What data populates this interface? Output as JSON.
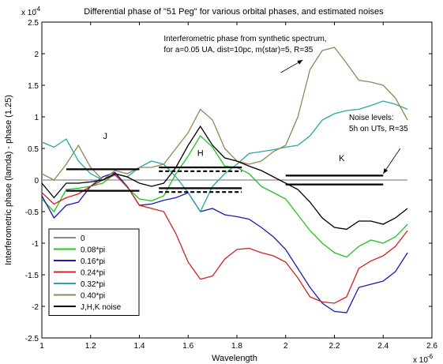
{
  "chart_data": {
    "type": "line",
    "title": "Differential phase of \"51 Peg\" for various orbital phases, and estimated noises",
    "xlabel": "Wavelength",
    "ylabel": "Interferometric phase (lamda) - phase (1.25)",
    "x_multiplier": "x 10",
    "x_exponent": "-6",
    "y_multiplier": "x 10",
    "y_exponent": "-4",
    "xlim": [
      1.0,
      2.6
    ],
    "ylim": [
      -2.5,
      2.5
    ],
    "xticks": [
      "1",
      "1.2",
      "1.4",
      "1.6",
      "1.8",
      "2",
      "2.2",
      "2.4",
      "2.6"
    ],
    "yticks": [
      "-2.5",
      "-2",
      "-1.5",
      "-1",
      "-0.5",
      "0",
      "0.5",
      "1",
      "1.5",
      "2",
      "2.5"
    ],
    "xtick_values": [
      1.0,
      1.2,
      1.4,
      1.6,
      1.8,
      2.0,
      2.2,
      2.4,
      2.6
    ],
    "ytick_values": [
      -2.5,
      -2,
      -1.5,
      -1,
      -0.5,
      0,
      0.5,
      1,
      1.5,
      2,
      2.5
    ],
    "grid": false,
    "legend_position": "bottom-left",
    "x": [
      1.0,
      1.05,
      1.1,
      1.15,
      1.2,
      1.25,
      1.3,
      1.35,
      1.4,
      1.45,
      1.5,
      1.55,
      1.6,
      1.65,
      1.7,
      1.75,
      1.8,
      1.85,
      1.9,
      1.95,
      2.0,
      2.05,
      2.1,
      2.15,
      2.2,
      2.25,
      2.3,
      2.35,
      2.4,
      2.45,
      2.5
    ],
    "series": [
      {
        "name": "0",
        "color": "#8a8a8a",
        "values": [
          0,
          0,
          0,
          0,
          0,
          0,
          0,
          0,
          0,
          0,
          0,
          0,
          0,
          0,
          0,
          0,
          0,
          0,
          0,
          0,
          0,
          0,
          0,
          0,
          0,
          0,
          0,
          0,
          0,
          0,
          0
        ]
      },
      {
        "name": "0.08*pi",
        "color": "#22c422",
        "values": [
          -0.3,
          -0.5,
          -0.15,
          -0.13,
          -0.1,
          -0.05,
          0.1,
          -0.12,
          -0.3,
          -0.33,
          -0.25,
          0.1,
          0.38,
          0.7,
          0.52,
          0.22,
          0.2,
          0.1,
          -0.1,
          -0.2,
          -0.3,
          -0.55,
          -0.8,
          -1.0,
          -1.15,
          -1.22,
          -1.05,
          -0.95,
          -1.0,
          -0.9,
          -0.7
        ]
      },
      {
        "name": "0.16*pi",
        "color": "#1a1ab8",
        "values": [
          -0.25,
          -0.6,
          -0.4,
          -0.35,
          -0.1,
          0.05,
          0.12,
          -0.1,
          -0.4,
          -0.38,
          -0.32,
          -0.28,
          -0.2,
          -0.5,
          -0.45,
          -0.55,
          -0.58,
          -0.62,
          -0.75,
          -0.9,
          -1.1,
          -1.4,
          -1.7,
          -1.95,
          -2.08,
          -2.1,
          -1.7,
          -1.65,
          -1.6,
          -1.45,
          -1.15
        ]
      },
      {
        "name": "0.24*pi",
        "color": "#d42020",
        "values": [
          -0.2,
          -0.38,
          -0.28,
          -0.22,
          -0.1,
          0.0,
          0.08,
          -0.1,
          -0.4,
          -0.45,
          -0.5,
          -0.85,
          -1.3,
          -1.57,
          -1.52,
          -1.25,
          -1.1,
          -1.08,
          -1.15,
          -1.2,
          -1.3,
          -1.55,
          -1.85,
          -1.93,
          -1.95,
          -1.85,
          -1.4,
          -1.28,
          -1.2,
          -1.05,
          -0.8
        ]
      },
      {
        "name": "0.32*pi",
        "color": "#2aa6a6",
        "values": [
          0.6,
          0.52,
          0.65,
          0.3,
          0.1,
          0.0,
          0.1,
          0.05,
          0.2,
          0.3,
          0.25,
          0.05,
          -0.2,
          -0.5,
          -0.1,
          0.1,
          0.25,
          0.42,
          0.45,
          0.48,
          0.52,
          0.55,
          0.7,
          0.95,
          1.05,
          1.1,
          1.12,
          1.18,
          1.25,
          1.2,
          1.12
        ]
      },
      {
        "name": "0.40*pi",
        "color": "#8c8a55",
        "values": [
          0.1,
          0.0,
          0.25,
          0.55,
          0.2,
          0.0,
          0.15,
          0.1,
          0.2,
          0.2,
          0.25,
          0.5,
          0.75,
          1.12,
          0.95,
          0.5,
          0.3,
          0.25,
          0.3,
          0.45,
          0.55,
          1.0,
          1.75,
          2.05,
          2.1,
          1.85,
          1.58,
          1.55,
          1.5,
          1.3,
          0.95
        ]
      },
      {
        "name": "J,H,K noise",
        "color": "#000000",
        "values": [
          -0.05,
          -0.28,
          -0.05,
          -0.05,
          -0.03,
          0.0,
          0.1,
          0.05,
          -0.05,
          -0.1,
          -0.05,
          0.2,
          0.55,
          0.85,
          0.55,
          0.35,
          0.3,
          0.22,
          0.15,
          0.05,
          -0.05,
          -0.15,
          -0.35,
          -0.6,
          -0.75,
          -0.78,
          -0.65,
          -0.65,
          -0.7,
          -0.6,
          -0.45
        ]
      }
    ],
    "noise_bars": [
      {
        "x1": 1.1,
        "x2": 1.4,
        "y": 0.17,
        "style": "solid"
      },
      {
        "x1": 1.1,
        "x2": 1.4,
        "y": -0.17,
        "style": "solid"
      },
      {
        "x1": 1.48,
        "x2": 1.82,
        "y": 0.2,
        "style": "solid"
      },
      {
        "x1": 1.48,
        "x2": 1.82,
        "y": 0.14,
        "style": "dashed"
      },
      {
        "x1": 1.48,
        "x2": 1.82,
        "y": -0.13,
        "style": "solid"
      },
      {
        "x1": 1.48,
        "x2": 1.82,
        "y": -0.19,
        "style": "dashed"
      },
      {
        "x1": 2.0,
        "x2": 2.4,
        "y": 0.07,
        "style": "solid"
      },
      {
        "x1": 2.0,
        "x2": 2.4,
        "y": -0.07,
        "style": "solid"
      }
    ],
    "band_labels": [
      {
        "text": "J",
        "x": 1.26,
        "y": 0.65
      },
      {
        "text": "H",
        "x": 1.65,
        "y": 0.38
      },
      {
        "text": "K",
        "x": 2.23,
        "y": 0.3
      }
    ],
    "annotations": [
      {
        "lines": [
          "Interferometric phase from synthetic spectrum,",
          "for a=0.05 UA, dist=10pc, m(star)=5, R=35"
        ],
        "tx": 1.5,
        "ty": 2.2,
        "ax1": 1.98,
        "ay1": 1.7,
        "ax2": 2.07,
        "ay2": 1.9
      },
      {
        "lines": [
          "Noise levels:",
          "5h on UTs, R=35"
        ],
        "tx": 2.26,
        "ty": 0.95,
        "ax1": 2.47,
        "ay1": 0.5,
        "ax2": 2.4,
        "ay2": 0.1
      }
    ]
  }
}
